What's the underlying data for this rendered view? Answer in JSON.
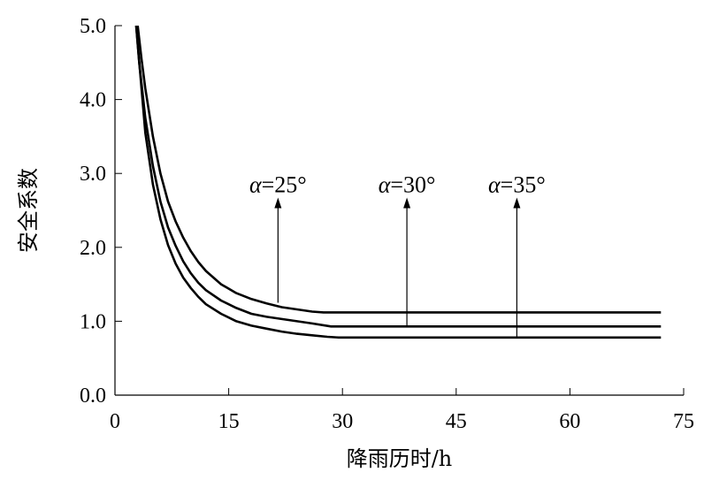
{
  "chart_data": {
    "type": "line",
    "title": "",
    "xlabel": "降雨历时/h",
    "ylabel": "安全系数",
    "xlim": [
      0,
      75
    ],
    "ylim": [
      0,
      5
    ],
    "xticks": [
      0,
      15,
      30,
      45,
      60,
      75
    ],
    "xtick_labels": [
      "0",
      "15",
      "30",
      "45",
      "60",
      "75"
    ],
    "yticks": [
      0,
      1,
      2,
      3,
      4,
      5
    ],
    "ytick_labels": [
      "0.0",
      "1.0",
      "2.0",
      "3.0",
      "4.0",
      "5.0"
    ],
    "grid": false,
    "legend": "none",
    "series": [
      {
        "x": [
          3.0,
          3.5,
          4,
          5,
          6,
          7,
          8,
          9,
          10,
          11,
          12,
          14,
          16,
          18,
          20,
          22,
          24,
          26,
          27.5,
          30,
          40,
          50,
          60,
          72
        ],
        "y": [
          5.0,
          4.55,
          4.15,
          3.5,
          3.0,
          2.62,
          2.35,
          2.13,
          1.95,
          1.8,
          1.68,
          1.5,
          1.38,
          1.3,
          1.24,
          1.19,
          1.16,
          1.13,
          1.12,
          1.12,
          1.12,
          1.12,
          1.12,
          1.12
        ]
      },
      {
        "x": [
          2.8,
          3.2,
          4,
          5,
          6,
          7,
          8,
          9,
          10,
          11,
          12,
          14,
          16,
          18,
          20,
          22,
          24,
          26,
          28.5,
          30,
          40,
          50,
          60,
          72
        ],
        "y": [
          5.0,
          4.5,
          3.75,
          3.1,
          2.62,
          2.27,
          2.02,
          1.81,
          1.65,
          1.52,
          1.42,
          1.28,
          1.18,
          1.1,
          1.06,
          1.03,
          1.0,
          0.97,
          0.93,
          0.93,
          0.93,
          0.93,
          0.93,
          0.93
        ]
      },
      {
        "x": [
          2.8,
          3.0,
          4,
          5,
          6,
          7,
          8,
          9,
          10,
          11,
          12,
          14,
          16,
          18,
          20,
          22,
          24,
          26,
          28,
          29.5,
          40,
          50,
          60,
          72
        ],
        "y": [
          5.0,
          4.75,
          3.55,
          2.85,
          2.38,
          2.03,
          1.78,
          1.59,
          1.45,
          1.33,
          1.23,
          1.1,
          1.0,
          0.94,
          0.9,
          0.86,
          0.83,
          0.81,
          0.79,
          0.78,
          0.78,
          0.78,
          0.78,
          0.78
        ]
      }
    ],
    "annotations": [
      {
        "var": "α",
        "text": "=25°",
        "x": 21.5,
        "y_from": 1.25,
        "y_to": 2.65
      },
      {
        "var": "α",
        "text": "=30°",
        "x": 38.5,
        "y_from": 0.93,
        "y_to": 2.65
      },
      {
        "var": "α",
        "text": "=35°",
        "x": 53,
        "y_from": 0.78,
        "y_to": 2.65
      }
    ]
  }
}
